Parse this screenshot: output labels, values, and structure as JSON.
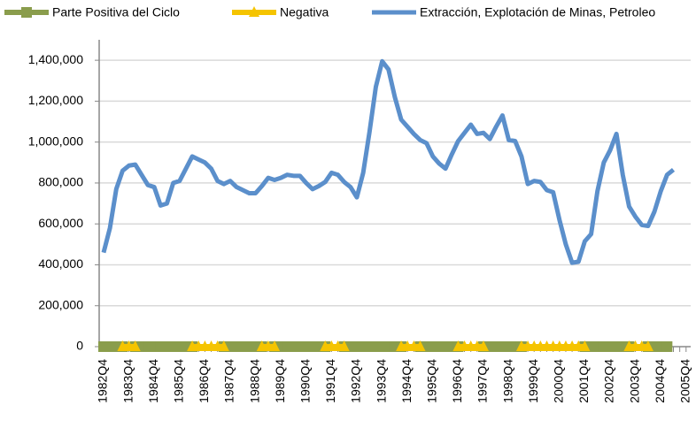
{
  "chart_data": {
    "type": "line",
    "categories": [
      "1982Q4",
      null,
      null,
      null,
      "1983Q4",
      null,
      null,
      null,
      "1984Q4",
      null,
      null,
      null,
      "1985Q4",
      null,
      null,
      null,
      "1986Q4",
      null,
      null,
      null,
      "1987Q4",
      null,
      null,
      null,
      "1988Q4",
      null,
      null,
      null,
      "1989Q4",
      null,
      null,
      null,
      "1990Q4",
      null,
      null,
      null,
      "1991Q4",
      null,
      null,
      null,
      "1992Q4",
      null,
      null,
      null,
      "1993Q4",
      null,
      null,
      null,
      "1994Q4",
      null,
      null,
      null,
      "1995Q4",
      null,
      null,
      null,
      "1996Q4",
      null,
      null,
      null,
      "1997Q4",
      null,
      null,
      null,
      "1998Q4",
      null,
      null,
      null,
      "1999Q4",
      null,
      null,
      null,
      "2000Q4",
      null,
      null,
      null,
      "2001Q4",
      null,
      null,
      null,
      "2002Q4",
      null,
      null,
      null,
      "2003Q4",
      null,
      null,
      null,
      "2004Q4",
      null,
      null,
      null,
      "2005Q4"
    ],
    "series": [
      {
        "name": "Parte Positiva del Ciclo",
        "color": "#8a9d4c",
        "marker": "square",
        "values": [
          0,
          0,
          0,
          0,
          null,
          0,
          0,
          0,
          0,
          0,
          0,
          0,
          0,
          0,
          0,
          null,
          null,
          null,
          null,
          0,
          0,
          0,
          0,
          0,
          0,
          0,
          null,
          0,
          0,
          0,
          0,
          0,
          0,
          0,
          0,
          0,
          null,
          null,
          0,
          0,
          0,
          0,
          0,
          0,
          0,
          0,
          0,
          0,
          null,
          null,
          0,
          0,
          0,
          0,
          0,
          0,
          0,
          null,
          null,
          null,
          0,
          0,
          0,
          0,
          0,
          0,
          0,
          null,
          null,
          null,
          null,
          null,
          null,
          null,
          null,
          null,
          0,
          0,
          0,
          0,
          0,
          0,
          0,
          0,
          null,
          null,
          0,
          0,
          0,
          0,
          null,
          null,
          null
        ]
      },
      {
        "name": "Negativa",
        "color": "#f5c400",
        "marker": "triangle",
        "values": [
          null,
          null,
          null,
          0,
          0,
          0,
          null,
          null,
          null,
          null,
          null,
          null,
          null,
          null,
          0,
          0,
          0,
          0,
          0,
          0,
          null,
          null,
          null,
          null,
          null,
          0,
          0,
          0,
          null,
          null,
          null,
          null,
          null,
          null,
          null,
          0,
          0,
          0,
          0,
          null,
          null,
          null,
          null,
          null,
          null,
          null,
          null,
          0,
          0,
          0,
          0,
          null,
          null,
          null,
          null,
          null,
          0,
          0,
          0,
          0,
          0,
          null,
          null,
          null,
          null,
          null,
          0,
          0,
          0,
          0,
          0,
          0,
          0,
          0,
          0,
          0,
          0,
          null,
          null,
          null,
          null,
          null,
          null,
          0,
          0,
          0,
          0,
          null,
          null,
          null,
          null,
          null,
          null
        ]
      },
      {
        "name": "Extracción, Explotación de Minas, Petroleo",
        "color": "#5b8fcb",
        "values": [
          460000,
          580000,
          770000,
          860000,
          885000,
          890000,
          840000,
          790000,
          780000,
          690000,
          700000,
          800000,
          810000,
          870000,
          930000,
          915000,
          900000,
          870000,
          810000,
          795000,
          810000,
          780000,
          765000,
          750000,
          750000,
          785000,
          825000,
          815000,
          825000,
          840000,
          835000,
          835000,
          800000,
          770000,
          785000,
          805000,
          850000,
          840000,
          805000,
          780000,
          730000,
          850000,
          1050000,
          1270000,
          1395000,
          1355000,
          1220000,
          1110000,
          1075000,
          1040000,
          1010000,
          995000,
          930000,
          895000,
          870000,
          940000,
          1005000,
          1045000,
          1085000,
          1040000,
          1045000,
          1015000,
          1075000,
          1130000,
          1010000,
          1005000,
          930000,
          795000,
          810000,
          805000,
          765000,
          755000,
          620000,
          500000,
          410000,
          415000,
          515000,
          550000,
          760000,
          900000,
          960000,
          1040000,
          840000,
          685000,
          635000,
          595000,
          590000,
          660000,
          760000,
          840000,
          865000,
          null,
          null
        ]
      }
    ],
    "ylim": [
      0,
      1500000
    ],
    "yticks": [
      0,
      {
        "value": 200000,
        "label": "200,000"
      },
      {
        "value": 400000,
        "label": "400,000"
      },
      {
        "value": 600000,
        "label": "600,000"
      },
      {
        "value": 800000,
        "label": "800,000"
      },
      {
        "value": 1000000,
        "label": "1,000,000"
      },
      {
        "value": 1200000,
        "label": "1,200,000"
      },
      {
        "value": 1400000,
        "label": "1,400,000"
      }
    ],
    "grid": true,
    "legend": "top"
  }
}
